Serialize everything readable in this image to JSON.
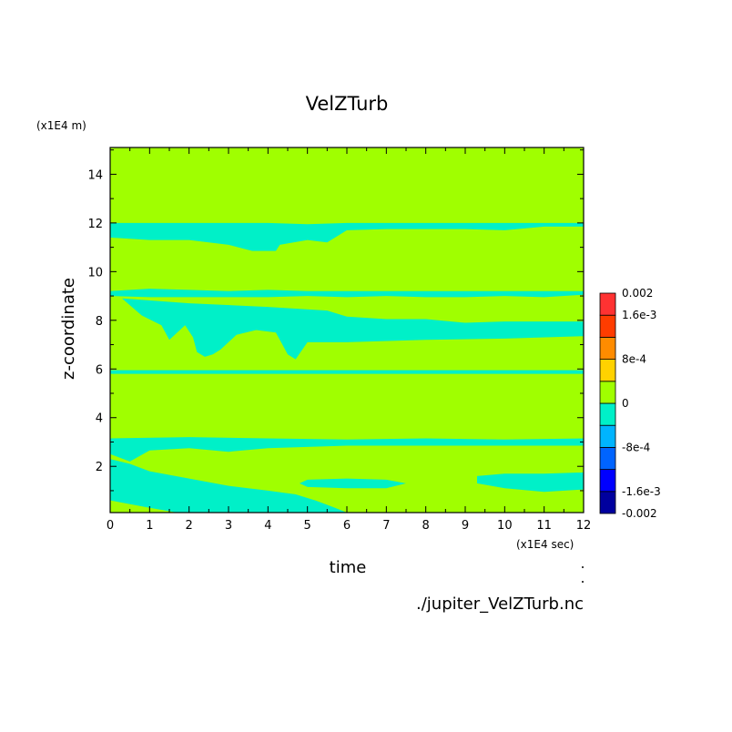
{
  "chart_data": {
    "type": "heatmap",
    "title": "VelZTurb",
    "xlabel": "time",
    "ylabel": "z-coordinate",
    "x_unit": "(x1E4 sec)",
    "y_unit": "(x1E4 m)",
    "xlim": [
      0,
      12
    ],
    "ylim": [
      0.1,
      15.1
    ],
    "xticks": [
      0,
      1,
      2,
      3,
      4,
      5,
      6,
      7,
      8,
      9,
      10,
      11,
      12
    ],
    "xtick_labels": [
      "0",
      "1",
      "2",
      "3",
      "4",
      "5",
      "6",
      "7",
      "8",
      "9",
      "10",
      "11",
      "12"
    ],
    "yticks": [
      2,
      4,
      6,
      8,
      10,
      12,
      14
    ],
    "ytick_labels": [
      "2",
      "4",
      "6",
      "8",
      "10",
      "12",
      "14"
    ],
    "background_level": 0,
    "colorbar": {
      "levels": [
        -0.002,
        -0.0016,
        -0.0012,
        -0.0008,
        -0.0004,
        0,
        0.0004,
        0.0008,
        0.0012,
        0.0016,
        0.002
      ],
      "colors": [
        "#00009e",
        "#0000ff",
        "#0064ff",
        "#00b4ff",
        "#00f0c8",
        "#a0ff00",
        "#ffd200",
        "#ff8c00",
        "#ff3c00",
        "#ff3232"
      ],
      "tick_values": [
        0.002,
        0.0016,
        0.0008,
        0,
        -0.0008,
        -0.0016,
        -0.002
      ],
      "tick_labels": [
        "0.002",
        "1.6e-3",
        "8e-4",
        "0",
        "-8e-4",
        "-1.6e-3",
        "-0.002"
      ]
    },
    "regions": [
      {
        "level": -0.0002,
        "poly": [
          [
            0,
            12
          ],
          [
            1,
            12
          ],
          [
            2,
            12
          ],
          [
            3,
            12
          ],
          [
            4,
            12
          ],
          [
            5,
            11.95
          ],
          [
            6,
            12
          ],
          [
            7,
            12
          ],
          [
            8,
            12
          ],
          [
            9,
            12
          ],
          [
            10,
            12
          ],
          [
            11,
            12
          ],
          [
            12,
            12
          ],
          [
            12,
            11.85
          ],
          [
            11,
            11.85
          ],
          [
            10,
            11.7
          ],
          [
            9,
            11.75
          ],
          [
            8,
            11.75
          ],
          [
            7,
            11.75
          ],
          [
            6,
            11.7
          ],
          [
            5.8,
            11.5
          ],
          [
            5.5,
            11.2
          ],
          [
            5,
            11.3
          ],
          [
            4.3,
            11.1
          ],
          [
            4.2,
            10.85
          ],
          [
            3.6,
            10.85
          ],
          [
            3,
            11.1
          ],
          [
            2,
            11.3
          ],
          [
            1,
            11.3
          ],
          [
            0,
            11.4
          ]
        ]
      },
      {
        "level": -0.0002,
        "poly": [
          [
            0,
            9.2
          ],
          [
            1,
            9.3
          ],
          [
            2,
            9.25
          ],
          [
            3,
            9.2
          ],
          [
            4,
            9.25
          ],
          [
            5,
            9.2
          ],
          [
            6,
            9.2
          ],
          [
            7,
            9.2
          ],
          [
            8,
            9.2
          ],
          [
            9,
            9.2
          ],
          [
            10,
            9.2
          ],
          [
            11,
            9.2
          ],
          [
            12,
            9.2
          ],
          [
            12,
            9.05
          ],
          [
            11,
            8.95
          ],
          [
            10,
            9
          ],
          [
            9,
            8.95
          ],
          [
            8,
            8.95
          ],
          [
            7,
            9
          ],
          [
            6,
            8.95
          ],
          [
            5,
            9
          ],
          [
            4,
            8.95
          ],
          [
            3,
            8.95
          ],
          [
            2,
            8.95
          ],
          [
            1,
            8.95
          ],
          [
            0,
            9
          ]
        ]
      },
      {
        "level": -0.0002,
        "poly": [
          [
            0.3,
            8.9
          ],
          [
            2,
            8.7
          ],
          [
            4,
            8.55
          ],
          [
            5.5,
            8.4
          ],
          [
            6,
            8.15
          ],
          [
            7,
            8.05
          ],
          [
            8,
            8.05
          ],
          [
            9,
            7.9
          ],
          [
            10,
            7.95
          ],
          [
            11,
            7.95
          ],
          [
            12,
            7.95
          ],
          [
            12,
            7.35
          ],
          [
            10,
            7.25
          ],
          [
            8,
            7.2
          ],
          [
            6,
            7.1
          ],
          [
            5,
            7.1
          ],
          [
            4.7,
            6.4
          ],
          [
            4.5,
            6.6
          ],
          [
            4.2,
            7.5
          ],
          [
            3.7,
            7.6
          ],
          [
            3.2,
            7.4
          ],
          [
            2.8,
            6.8
          ],
          [
            2.6,
            6.6
          ],
          [
            2.4,
            6.5
          ],
          [
            2.2,
            6.7
          ],
          [
            2.1,
            7.3
          ],
          [
            1.9,
            7.8
          ],
          [
            1.5,
            7.2
          ],
          [
            1.3,
            7.8
          ],
          [
            0.8,
            8.2
          ]
        ]
      },
      {
        "level": -0.0002,
        "poly": [
          [
            0,
            5.95
          ],
          [
            12,
            5.95
          ],
          [
            12,
            5.8
          ],
          [
            0,
            5.8
          ]
        ]
      },
      {
        "level": -0.0002,
        "poly": [
          [
            0,
            3.15
          ],
          [
            2,
            3.2
          ],
          [
            4,
            3.15
          ],
          [
            6,
            3.1
          ],
          [
            8,
            3.15
          ],
          [
            10,
            3.1
          ],
          [
            12,
            3.15
          ],
          [
            12,
            2.85
          ],
          [
            10,
            2.85
          ],
          [
            8,
            2.85
          ],
          [
            6,
            2.85
          ],
          [
            4,
            2.75
          ],
          [
            3,
            2.6
          ],
          [
            2,
            2.75
          ],
          [
            1,
            2.65
          ],
          [
            0.5,
            2.2
          ],
          [
            0,
            2.5
          ]
        ]
      },
      {
        "level": -0.0002,
        "poly": [
          [
            0,
            2.3
          ],
          [
            0.5,
            2.1
          ],
          [
            1,
            1.8
          ],
          [
            2,
            1.5
          ],
          [
            3,
            1.2
          ],
          [
            4,
            1
          ],
          [
            4.7,
            0.85
          ],
          [
            5.2,
            0.6
          ],
          [
            5.7,
            0.3
          ],
          [
            6,
            0.1
          ],
          [
            1.7,
            0.1
          ],
          [
            1,
            0.3
          ],
          [
            0,
            0.6
          ]
        ]
      },
      {
        "level": -0.0002,
        "poly": [
          [
            5,
            1.45
          ],
          [
            6,
            1.5
          ],
          [
            7,
            1.45
          ],
          [
            7.5,
            1.3
          ],
          [
            7,
            1.1
          ],
          [
            6,
            1.1
          ],
          [
            5,
            1.15
          ],
          [
            4.8,
            1.3
          ]
        ]
      },
      {
        "level": -0.0002,
        "poly": [
          [
            9.3,
            1.6
          ],
          [
            10,
            1.7
          ],
          [
            11,
            1.7
          ],
          [
            12,
            1.75
          ],
          [
            12,
            1.05
          ],
          [
            11,
            0.95
          ],
          [
            10,
            1.1
          ],
          [
            9.3,
            1.3
          ]
        ]
      }
    ],
    "footer": "./jupiter_VelZTurb.nc"
  }
}
